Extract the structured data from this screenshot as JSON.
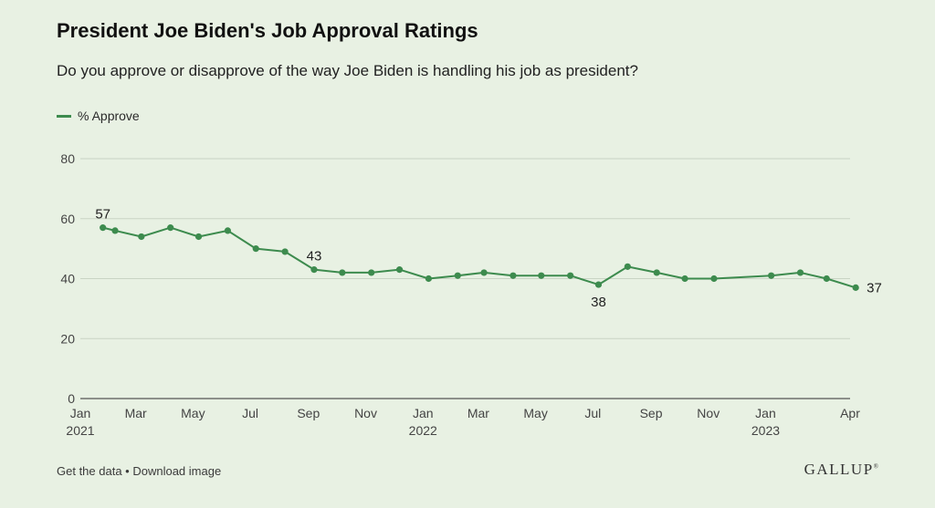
{
  "title": "President Joe Biden's Job Approval Ratings",
  "subtitle": "Do you approve or disapprove of the way Joe Biden is handling his job as president?",
  "footer": {
    "get_data": "Get the data",
    "separator": " • ",
    "download": "Download image",
    "brand": "GALLUP",
    "brand_mark": "®"
  },
  "chart_data": {
    "type": "line",
    "series": [
      {
        "name": "% Approve",
        "color": "#3d8b4e",
        "points": [
          {
            "x": "2021-01-25",
            "y": 57
          },
          {
            "x": "2021-02-07",
            "y": 56
          },
          {
            "x": "2021-03-07",
            "y": 54
          },
          {
            "x": "2021-04-07",
            "y": 57
          },
          {
            "x": "2021-05-07",
            "y": 54
          },
          {
            "x": "2021-06-07",
            "y": 56
          },
          {
            "x": "2021-07-07",
            "y": 50
          },
          {
            "x": "2021-08-07",
            "y": 49
          },
          {
            "x": "2021-09-07",
            "y": 43
          },
          {
            "x": "2021-10-07",
            "y": 42
          },
          {
            "x": "2021-11-07",
            "y": 42
          },
          {
            "x": "2021-12-07",
            "y": 43
          },
          {
            "x": "2022-01-07",
            "y": 40
          },
          {
            "x": "2022-02-07",
            "y": 41
          },
          {
            "x": "2022-03-07",
            "y": 42
          },
          {
            "x": "2022-04-07",
            "y": 41
          },
          {
            "x": "2022-05-07",
            "y": 41
          },
          {
            "x": "2022-06-07",
            "y": 41
          },
          {
            "x": "2022-07-07",
            "y": 38
          },
          {
            "x": "2022-08-07",
            "y": 44
          },
          {
            "x": "2022-09-07",
            "y": 42
          },
          {
            "x": "2022-10-07",
            "y": 40
          },
          {
            "x": "2022-11-07",
            "y": 40
          },
          {
            "x": "2023-01-07",
            "y": 41
          },
          {
            "x": "2023-02-07",
            "y": 42
          },
          {
            "x": "2023-03-07",
            "y": 40
          },
          {
            "x": "2023-04-07",
            "y": 37
          }
        ]
      }
    ],
    "data_labels": [
      {
        "index": 0,
        "text": "57",
        "placement": "above"
      },
      {
        "index": 8,
        "text": "43",
        "placement": "above"
      },
      {
        "index": 18,
        "text": "38",
        "placement": "below"
      },
      {
        "index": 26,
        "text": "37",
        "placement": "right"
      }
    ],
    "x_ticks": [
      {
        "date": "2021-01-01",
        "label": "Jan",
        "year": "2021"
      },
      {
        "date": "2021-03-01",
        "label": "Mar"
      },
      {
        "date": "2021-05-01",
        "label": "May"
      },
      {
        "date": "2021-07-01",
        "label": "Jul"
      },
      {
        "date": "2021-09-01",
        "label": "Sep"
      },
      {
        "date": "2021-11-01",
        "label": "Nov"
      },
      {
        "date": "2022-01-01",
        "label": "Jan",
        "year": "2022"
      },
      {
        "date": "2022-03-01",
        "label": "Mar"
      },
      {
        "date": "2022-05-01",
        "label": "May"
      },
      {
        "date": "2022-07-01",
        "label": "Jul"
      },
      {
        "date": "2022-09-01",
        "label": "Sep"
      },
      {
        "date": "2022-11-01",
        "label": "Nov"
      },
      {
        "date": "2023-01-01",
        "label": "Jan",
        "year": "2023"
      },
      {
        "date": "2023-04-01",
        "label": "Apr"
      }
    ],
    "x_range": [
      "2021-01-01",
      "2023-04-01"
    ],
    "y_ticks": [
      0,
      20,
      40,
      60,
      80
    ],
    "ylim": [
      0,
      80
    ],
    "grid": true,
    "legend_position": "top-left"
  }
}
